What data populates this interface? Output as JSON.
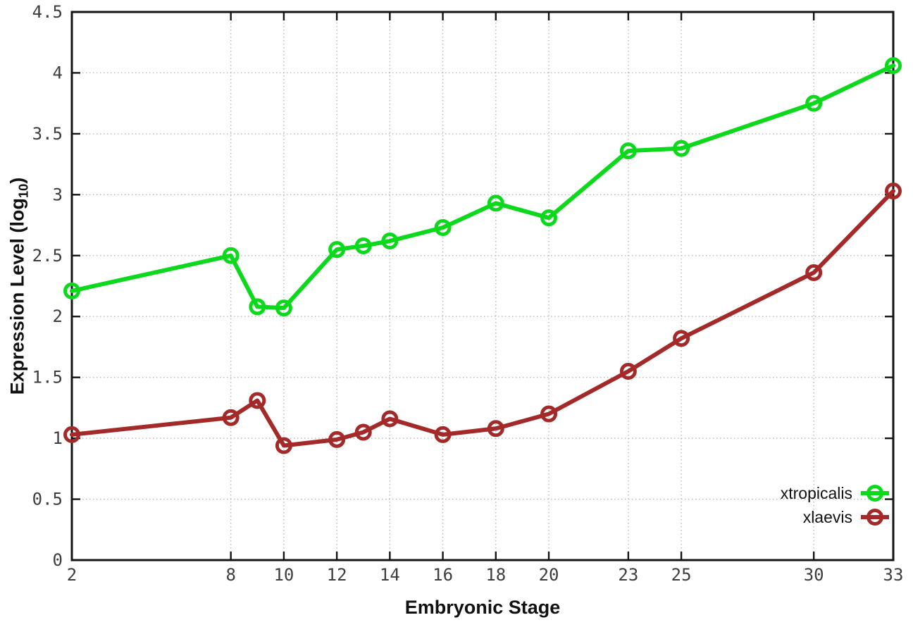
{
  "chart_data": {
    "type": "line",
    "title": "",
    "xlabel": "Embryonic Stage",
    "ylabel": {
      "prefix": "Expression Level (log",
      "sub": "10",
      "suffix": ")"
    },
    "x": [
      2,
      8,
      9,
      10,
      12,
      13,
      14,
      16,
      18,
      20,
      23,
      25,
      30,
      33
    ],
    "xlim": [
      2,
      33
    ],
    "ylim": [
      0,
      4.5
    ],
    "xticks": [
      "2",
      "8",
      "10",
      "12",
      "14",
      "16",
      "18",
      "20",
      "23",
      "25",
      "30",
      "33"
    ],
    "yticks": [
      "0",
      "0.5",
      "1",
      "1.5",
      "2",
      "2.5",
      "3",
      "3.5",
      "4",
      "4.5"
    ],
    "grid": true,
    "legend_position": "bottom-right-inside",
    "marker": "open-circle",
    "colors": {
      "xtropicalis": "#0cd81c",
      "xlaevis": "#a42a2a",
      "axis": "#141414",
      "grid": "#b8b8b8",
      "tick_label": "#3d3d3d"
    },
    "series": [
      {
        "name": "xtropicalis",
        "color": "#0cd81c",
        "values": [
          2.21,
          2.5,
          2.08,
          2.07,
          2.55,
          2.58,
          2.62,
          2.73,
          2.93,
          2.81,
          3.36,
          3.38,
          3.75,
          4.06
        ]
      },
      {
        "name": "xlaevis",
        "color": "#a42a2a",
        "values": [
          1.03,
          1.17,
          1.31,
          0.94,
          0.99,
          1.05,
          1.16,
          1.03,
          1.08,
          1.2,
          1.55,
          1.82,
          2.36,
          3.03
        ]
      }
    ]
  }
}
